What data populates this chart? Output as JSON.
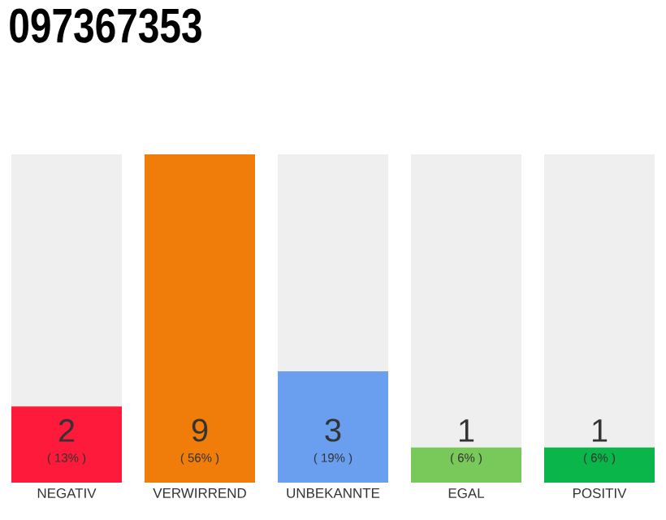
{
  "chart_data": {
    "type": "bar",
    "title": "097367353",
    "categories": [
      "NEGATIV",
      "VERWIRREND",
      "UNBEKANNTE",
      "EGAL",
      "POSITIV"
    ],
    "values": [
      13,
      56,
      19,
      6,
      6
    ],
    "colors": [
      "#fe1a3a",
      "#f07d0a",
      "#6a9ff0",
      "#79c95a",
      "#0ab54a"
    ],
    "value_labels": [
      "( 13% )",
      "( 56% )",
      "( 19% )",
      "( 6% )",
      "( 6% )"
    ],
    "annotations": [
      "2",
      "9",
      "3",
      "1",
      "1"
    ],
    "tick_labels": "x"
  }
}
